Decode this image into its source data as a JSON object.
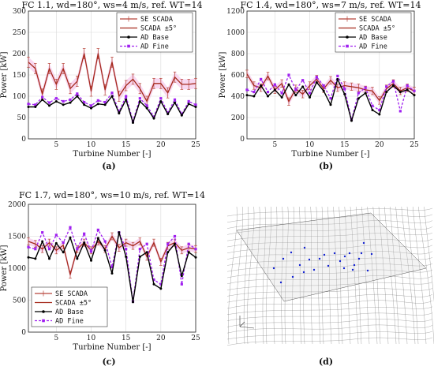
{
  "figure": {
    "panel_labels": [
      "(a)",
      "(b)",
      "(c)",
      "(d)"
    ]
  },
  "legend_entries": [
    "SE SCADA",
    "SCADA ±5°",
    "AD Base",
    "AD Fine"
  ],
  "colors": {
    "se_scada": "#b8443a",
    "scada_band": "#f2b8e6",
    "scada": "#a52a1c",
    "ad_base": "#000000",
    "ad_fine": "#a020f0",
    "grid": "#d9d9d9",
    "mesh": "#6e6e6e",
    "turbine": "#1020d0"
  },
  "chart_data": [
    {
      "type": "line",
      "panel": "(a)",
      "title": "FC 1.1, wd=180°, ws=4 m/s, ref. WT=14",
      "xlabel": "Turbine Number [-]",
      "ylabel": "Power [kW]",
      "xlim": [
        1,
        25
      ],
      "ylim": [
        0,
        300
      ],
      "xticks": [
        5,
        10,
        15,
        20,
        25
      ],
      "yticks": [
        0,
        50,
        100,
        150,
        200,
        250,
        300
      ],
      "grid": true,
      "legend": "top-right",
      "x": [
        1,
        2,
        3,
        4,
        5,
        6,
        7,
        8,
        9,
        10,
        11,
        12,
        13,
        14,
        15,
        16,
        17,
        18,
        19,
        20,
        21,
        22,
        23,
        24,
        25
      ],
      "series": [
        {
          "name": "SE SCADA",
          "band": 12,
          "values": [
            180,
            165,
            105,
            165,
            128,
            165,
            118,
            135,
            200,
            112,
            200,
            115,
            180,
            100,
            125,
            140,
            118,
            88,
            130,
            130,
            108,
            145,
            128,
            128,
            130
          ]
        },
        {
          "name": "SCADA ±5°",
          "values": [
            180,
            165,
            105,
            165,
            128,
            165,
            118,
            135,
            200,
            112,
            200,
            115,
            180,
            100,
            125,
            140,
            118,
            88,
            130,
            130,
            108,
            145,
            128,
            128,
            130
          ]
        },
        {
          "name": "AD Base",
          "values": [
            75,
            75,
            92,
            78,
            88,
            80,
            85,
            100,
            80,
            72,
            82,
            80,
            100,
            60,
            92,
            38,
            88,
            72,
            48,
            88,
            58,
            85,
            55,
            82,
            75
          ]
        },
        {
          "name": "AD Fine",
          "values": [
            82,
            80,
            98,
            85,
            95,
            88,
            92,
            106,
            86,
            78,
            90,
            86,
            108,
            64,
            100,
            42,
            95,
            78,
            52,
            95,
            62,
            92,
            58,
            88,
            80
          ]
        }
      ]
    },
    {
      "type": "line",
      "panel": "(b)",
      "title": "FC 1.4, wd=180°, ws=7 m/s, ref. WT=14",
      "xlabel": "Turbine Number [-]",
      "ylabel": "Power [kW]",
      "xlim": [
        1,
        25
      ],
      "ylim": [
        0,
        1200
      ],
      "xticks": [
        5,
        10,
        15,
        20,
        25
      ],
      "yticks": [
        0,
        200,
        400,
        600,
        800,
        1000,
        1200
      ],
      "grid": true,
      "legend": "top-right",
      "x": [
        1,
        2,
        3,
        4,
        5,
        6,
        7,
        8,
        9,
        10,
        11,
        12,
        13,
        14,
        15,
        16,
        17,
        18,
        19,
        20,
        21,
        22,
        23,
        24,
        25
      ],
      "series": [
        {
          "name": "SE SCADA",
          "band": 35,
          "values": [
            610,
            500,
            480,
            590,
            460,
            520,
            350,
            470,
            420,
            500,
            560,
            470,
            550,
            480,
            500,
            490,
            480,
            460,
            450,
            360,
            470,
            520,
            450,
            480,
            450
          ]
        },
        {
          "name": "SCADA ±5°",
          "values": [
            610,
            500,
            480,
            590,
            460,
            520,
            350,
            470,
            420,
            500,
            560,
            470,
            550,
            480,
            500,
            490,
            480,
            460,
            450,
            360,
            470,
            520,
            450,
            480,
            450
          ]
        },
        {
          "name": "AD Base",
          "values": [
            410,
            400,
            500,
            400,
            460,
            390,
            510,
            410,
            490,
            390,
            530,
            450,
            320,
            560,
            420,
            170,
            380,
            430,
            270,
            230,
            440,
            500,
            440,
            460,
            410
          ]
        },
        {
          "name": "AD Fine",
          "values": [
            460,
            440,
            560,
            440,
            510,
            430,
            600,
            460,
            550,
            430,
            580,
            500,
            380,
            590,
            470,
            180,
            430,
            480,
            310,
            270,
            490,
            540,
            260,
            500,
            450
          ]
        }
      ]
    },
    {
      "type": "line",
      "panel": "(c)",
      "title": "FC 1.7, wd=180°, ws=10 m/s, ref. WT=14",
      "xlabel": "Turbine Number [-]",
      "ylabel": "Power [kW]",
      "xlim": [
        1,
        25
      ],
      "ylim": [
        0,
        2000
      ],
      "xticks": [
        5,
        10,
        15,
        20,
        25
      ],
      "yticks": [
        0,
        500,
        1000,
        1500,
        2000
      ],
      "grid": true,
      "legend": "bottom-left",
      "x": [
        1,
        2,
        3,
        4,
        5,
        6,
        7,
        8,
        9,
        10,
        11,
        12,
        13,
        14,
        15,
        16,
        17,
        18,
        19,
        20,
        21,
        22,
        23,
        24,
        25
      ],
      "series": [
        {
          "name": "SE SCADA",
          "band": 55,
          "values": [
            1420,
            1380,
            1300,
            1400,
            1280,
            1360,
            900,
            1300,
            1400,
            1280,
            1420,
            1300,
            1500,
            1320,
            1400,
            1350,
            1420,
            1180,
            1400,
            1100,
            1350,
            1400,
            1280,
            1320,
            1300
          ]
        },
        {
          "name": "SCADA ±5°",
          "values": [
            1420,
            1380,
            1300,
            1400,
            1280,
            1360,
            900,
            1300,
            1400,
            1280,
            1420,
            1300,
            1500,
            1320,
            1400,
            1350,
            1420,
            1180,
            1400,
            1100,
            1350,
            1400,
            1280,
            1320,
            1300
          ]
        },
        {
          "name": "AD Base",
          "values": [
            1170,
            1150,
            1420,
            1150,
            1390,
            1250,
            1480,
            1150,
            1400,
            1120,
            1470,
            1280,
            920,
            1560,
            1180,
            470,
            1180,
            1250,
            750,
            680,
            1250,
            1380,
            880,
            1250,
            1170
          ]
        },
        {
          "name": "AD Fine",
          "values": [
            1330,
            1300,
            1560,
            1300,
            1520,
            1400,
            1640,
            1300,
            1540,
            1260,
            1600,
            1420,
            1020,
            1560,
            1300,
            480,
            1300,
            1380,
            820,
            750,
            1380,
            1500,
            750,
            1380,
            1300
          ]
        }
      ]
    }
  ]
}
